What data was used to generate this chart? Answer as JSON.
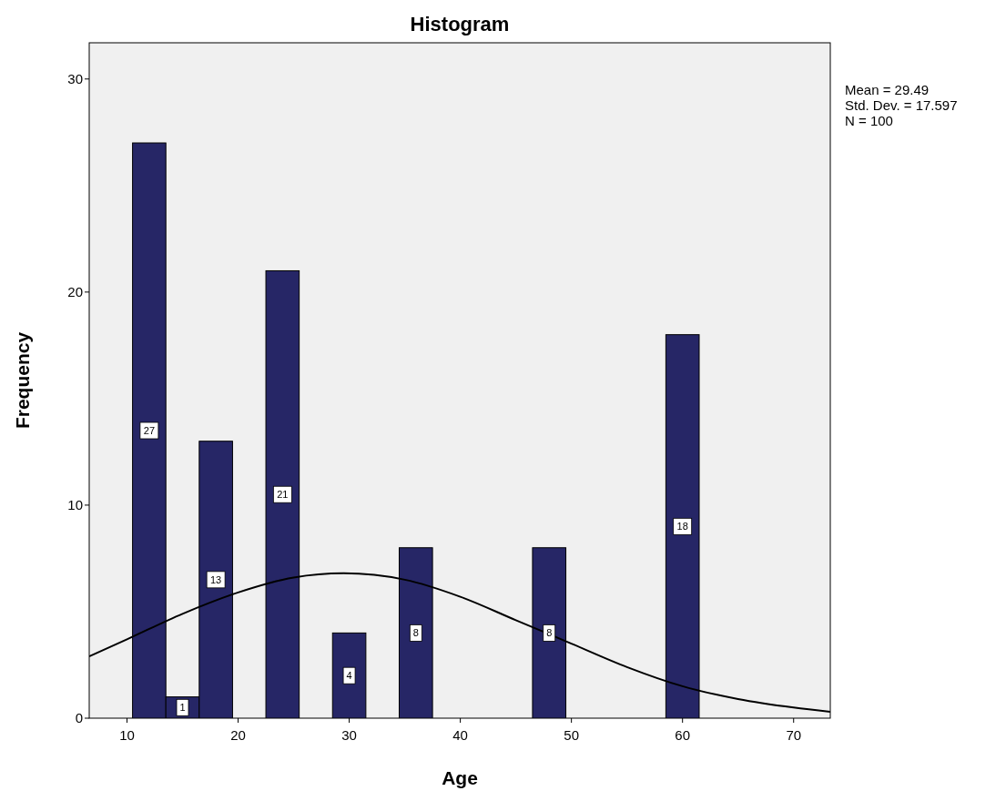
{
  "chart_data": {
    "type": "histogram",
    "title": "Histogram",
    "xlabel": "Age",
    "ylabel": "Frequency",
    "bins": [
      10.5,
      13.5,
      16.5,
      19.5,
      22.5,
      25.5,
      28.5,
      31.5,
      34.5,
      37.5,
      40.5,
      43.5,
      46.5,
      49.5,
      52.5,
      55.5,
      58.5,
      61.5
    ],
    "series": [
      {
        "color": "#262666",
        "values": [
          27,
          1,
          13,
          0,
          21,
          0,
          4,
          0,
          8,
          0,
          0,
          0,
          8,
          0,
          0,
          0,
          18
        ],
        "value_labels": [
          "27",
          "1",
          "13",
          null,
          "21",
          null,
          "4",
          null,
          "8",
          null,
          null,
          null,
          "8",
          null,
          null,
          null,
          "18"
        ]
      },
      {
        "type": "line",
        "color": "#000000",
        "x": [
          6.6,
          10,
          15,
          20,
          25,
          29.5,
          35,
          40,
          45,
          50,
          55,
          60,
          65,
          70,
          73.3
        ],
        "values": [
          2.9,
          3.7,
          4.9,
          5.9,
          6.6,
          6.8,
          6.5,
          5.7,
          4.6,
          3.5,
          2.4,
          1.5,
          0.9,
          0.5,
          0.3
        ]
      }
    ],
    "xlim": [
      6.6,
      73.3
    ],
    "ylim": [
      0,
      31.7
    ],
    "xticks": [
      10,
      20,
      30,
      40,
      50,
      60,
      70
    ],
    "yticks": [
      0,
      10,
      20,
      30
    ],
    "annotations": [
      "Mean = 29.49",
      "Std. Dev. = 17.597",
      "N = 100"
    ]
  }
}
